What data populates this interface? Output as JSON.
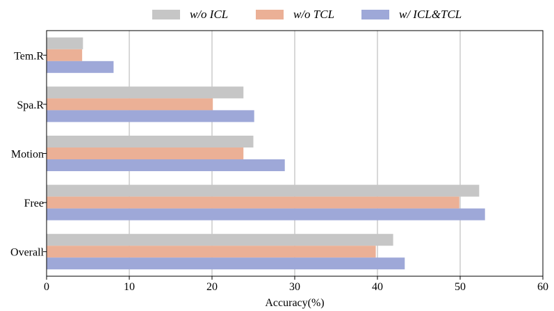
{
  "chart_data": {
    "type": "bar",
    "orientation": "horizontal",
    "categories": [
      "Tem.R",
      "Spa.R",
      "Motion",
      "Free",
      "Overall"
    ],
    "series": [
      {
        "name": "w/o ICL",
        "color": "#c6c6c6",
        "values": [
          4.4,
          23.8,
          25.0,
          52.3,
          41.9
        ]
      },
      {
        "name": "w/o TCL",
        "color": "#ebb096",
        "values": [
          4.3,
          20.1,
          23.8,
          49.9,
          39.8
        ]
      },
      {
        "name": "w/ ICL&TCL",
        "color": "#9ea8d8",
        "values": [
          8.1,
          25.1,
          28.8,
          53.0,
          43.3
        ]
      }
    ],
    "xlabel": "Accuracy(%)",
    "ylabel": "",
    "xlim": [
      0,
      60
    ],
    "xticks": [
      "0",
      "10",
      "20",
      "30",
      "40",
      "50",
      "60"
    ],
    "grid": "vertical",
    "legend": "top-center"
  }
}
